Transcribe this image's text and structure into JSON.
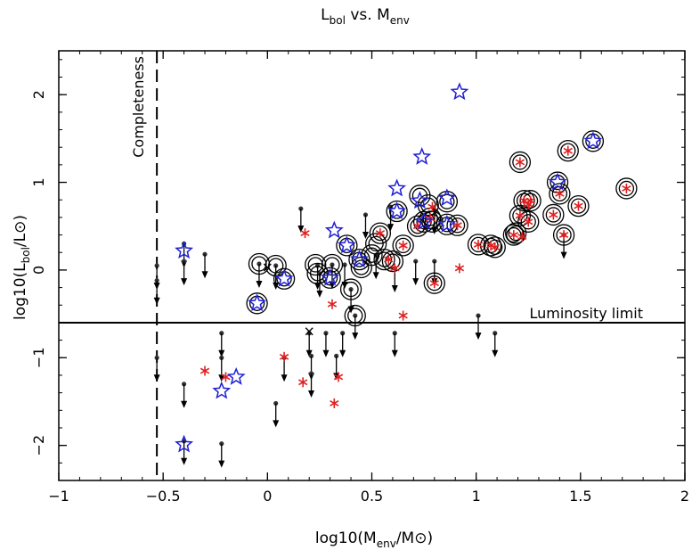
{
  "chart_data": {
    "type": "scatter",
    "title": {
      "main": "L",
      "sub1": "bol",
      "mid": " vs. M",
      "sub2": "env"
    },
    "xlabel": {
      "pre": "log10(M",
      "sub": "env",
      "mid": "/M",
      "sun": "⊙",
      "post": ")"
    },
    "ylabel": {
      "pre": "log10(L",
      "sub": "bol",
      "mid": "/L",
      "sun": "⊙",
      "post": ")"
    },
    "xlim": [
      -1,
      2
    ],
    "ylim": [
      -2.4,
      2.5
    ],
    "xticks": [
      -1,
      -0.5,
      0,
      0.5,
      1,
      1.5,
      2
    ],
    "xtick_labels": [
      "−1",
      "−0.5",
      "0",
      "0.5",
      "1",
      "1.5",
      "2"
    ],
    "yticks": [
      -2,
      -1,
      0,
      1,
      2
    ],
    "ytick_labels": [
      "−2",
      "−1",
      "0",
      "1",
      "2"
    ],
    "completeness": {
      "x": -0.53,
      "label": "Completeness"
    },
    "luminosity_limit": {
      "y": -0.6,
      "label": "Luminosity limit"
    },
    "colors": {
      "star_blue": "#1f1fd6",
      "asterisk_red": "#e02020",
      "axis": "#000000"
    },
    "series": {
      "blue_stars": [
        [
          -0.4,
          0.22
        ],
        [
          -0.4,
          -1.99
        ],
        [
          -0.22,
          -1.38
        ],
        [
          -0.15,
          -1.22
        ],
        [
          -0.05,
          -0.38
        ],
        [
          0.08,
          -0.1
        ],
        [
          0.3,
          -0.09
        ],
        [
          0.32,
          0.45
        ],
        [
          0.38,
          0.28
        ],
        [
          0.44,
          0.12
        ],
        [
          0.62,
          0.93
        ],
        [
          0.62,
          0.67
        ],
        [
          0.73,
          0.79
        ],
        [
          0.74,
          1.29
        ],
        [
          0.75,
          0.55
        ],
        [
          0.86,
          0.52
        ],
        [
          0.86,
          0.82
        ],
        [
          0.92,
          2.03
        ],
        [
          1.39,
          1.0
        ],
        [
          1.56,
          1.47
        ]
      ],
      "red_asterisks": [
        [
          -0.3,
          -1.15
        ],
        [
          -0.2,
          -1.22
        ],
        [
          0.08,
          -0.99
        ],
        [
          0.17,
          -1.28
        ],
        [
          0.18,
          0.42
        ],
        [
          0.31,
          -0.39
        ],
        [
          0.32,
          -1.52
        ],
        [
          0.34,
          -1.22
        ],
        [
          0.54,
          0.42
        ],
        [
          0.58,
          0.12
        ],
        [
          0.61,
          0.02
        ],
        [
          0.65,
          0.28
        ],
        [
          0.65,
          -0.52
        ],
        [
          0.72,
          0.5
        ],
        [
          0.78,
          0.59
        ],
        [
          0.79,
          0.72
        ],
        [
          0.8,
          -0.15
        ],
        [
          0.91,
          0.51
        ],
        [
          0.92,
          0.02
        ],
        [
          1.01,
          0.29
        ],
        [
          1.07,
          0.28
        ],
        [
          1.09,
          0.26
        ],
        [
          1.18,
          0.4
        ],
        [
          1.21,
          1.23
        ],
        [
          1.21,
          0.62
        ],
        [
          1.22,
          0.38
        ],
        [
          1.23,
          0.79
        ],
        [
          1.25,
          0.75
        ],
        [
          1.25,
          0.55
        ],
        [
          1.26,
          0.79
        ],
        [
          1.37,
          0.63
        ],
        [
          1.4,
          0.87
        ],
        [
          1.42,
          0.4
        ],
        [
          1.44,
          1.36
        ],
        [
          1.49,
          0.73
        ],
        [
          1.72,
          0.93
        ]
      ],
      "circled": [
        [
          -0.05,
          -0.38
        ],
        [
          -0.04,
          0.07
        ],
        [
          0.04,
          0.05
        ],
        [
          0.08,
          -0.1
        ],
        [
          0.23,
          0.06
        ],
        [
          0.24,
          -0.04
        ],
        [
          0.3,
          -0.09
        ],
        [
          0.31,
          0.06
        ],
        [
          0.38,
          0.28
        ],
        [
          0.4,
          -0.22
        ],
        [
          0.42,
          -0.52
        ],
        [
          0.44,
          0.12
        ],
        [
          0.45,
          0.03
        ],
        [
          0.5,
          0.17
        ],
        [
          0.52,
          0.3
        ],
        [
          0.54,
          0.42
        ],
        [
          0.56,
          0.12
        ],
        [
          0.6,
          0.1
        ],
        [
          0.62,
          0.67
        ],
        [
          0.65,
          0.28
        ],
        [
          0.72,
          0.5
        ],
        [
          0.73,
          0.85
        ],
        [
          0.75,
          0.55
        ],
        [
          0.77,
          0.74
        ],
        [
          0.78,
          0.59
        ],
        [
          0.79,
          0.55
        ],
        [
          0.8,
          -0.15
        ],
        [
          0.86,
          0.52
        ],
        [
          0.86,
          0.78
        ],
        [
          0.91,
          0.51
        ],
        [
          1.01,
          0.29
        ],
        [
          1.07,
          0.28
        ],
        [
          1.09,
          0.26
        ],
        [
          1.18,
          0.4
        ],
        [
          1.19,
          0.42
        ],
        [
          1.21,
          1.23
        ],
        [
          1.21,
          0.62
        ],
        [
          1.23,
          0.79
        ],
        [
          1.25,
          0.55
        ],
        [
          1.26,
          0.79
        ],
        [
          1.37,
          0.63
        ],
        [
          1.39,
          1.0
        ],
        [
          1.4,
          0.87
        ],
        [
          1.42,
          0.4
        ],
        [
          1.44,
          1.36
        ],
        [
          1.49,
          0.73
        ],
        [
          1.56,
          1.47
        ],
        [
          1.72,
          0.93
        ]
      ],
      "upper_limits": [
        [
          -0.53,
          0.05
        ],
        [
          -0.53,
          -0.12
        ],
        [
          -0.53,
          -1.0
        ],
        [
          -0.4,
          0.3
        ],
        [
          -0.4,
          0.1
        ],
        [
          -0.4,
          -1.3
        ],
        [
          -0.4,
          -1.95
        ],
        [
          -0.3,
          0.18
        ],
        [
          -0.22,
          -0.72
        ],
        [
          -0.22,
          -1.0
        ],
        [
          -0.22,
          -1.98
        ],
        [
          -0.04,
          0.07
        ],
        [
          0.04,
          0.05
        ],
        [
          0.04,
          -1.52
        ],
        [
          0.08,
          -1.0
        ],
        [
          0.16,
          0.7
        ],
        [
          0.2,
          -0.72
        ],
        [
          0.21,
          -0.98
        ],
        [
          0.21,
          -1.18
        ],
        [
          0.24,
          0.05
        ],
        [
          0.25,
          -0.04
        ],
        [
          0.28,
          -0.72
        ],
        [
          0.31,
          0.06
        ],
        [
          0.33,
          -0.98
        ],
        [
          0.36,
          -0.72
        ],
        [
          0.37,
          0.06
        ],
        [
          0.4,
          -0.22
        ],
        [
          0.42,
          -0.52
        ],
        [
          0.47,
          0.63
        ],
        [
          0.52,
          0.17
        ],
        [
          0.59,
          0.72
        ],
        [
          0.61,
          0.02
        ],
        [
          0.61,
          -0.72
        ],
        [
          0.71,
          0.1
        ],
        [
          0.8,
          0.68
        ],
        [
          0.8,
          0.1
        ],
        [
          1.01,
          -0.52
        ],
        [
          1.09,
          -0.72
        ],
        [
          1.42,
          0.4
        ]
      ],
      "crosses": [
        [
          0.0,
          0.03
        ],
        [
          0.2,
          -0.7
        ]
      ]
    }
  }
}
